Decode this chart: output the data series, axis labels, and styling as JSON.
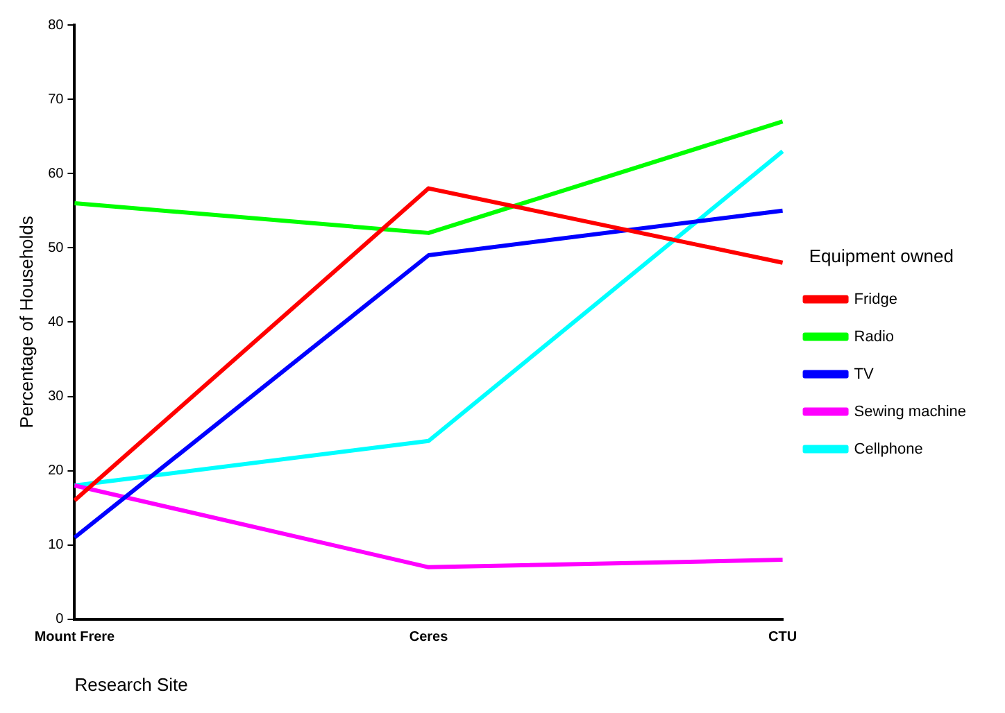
{
  "chart_data": {
    "type": "line",
    "xlabel": "Research Site",
    "ylabel": "Percentage of Households",
    "legend_title": "Equipment owned",
    "categories": [
      "Mount Frere",
      "Ceres",
      "CTU"
    ],
    "ylim": [
      0,
      80
    ],
    "yticks": [
      0,
      10,
      20,
      30,
      40,
      50,
      60,
      70,
      80
    ],
    "grid": false,
    "legend": "right",
    "marker": "none",
    "line_style": "solid",
    "series": [
      {
        "name": "Fridge",
        "color": "#ff0000",
        "values": [
          16,
          58,
          48
        ]
      },
      {
        "name": "Radio",
        "color": "#00ff00",
        "values": [
          56,
          52,
          67
        ]
      },
      {
        "name": "TV",
        "color": "#0000ff",
        "values": [
          11,
          49,
          55
        ]
      },
      {
        "name": "Sewing machine",
        "color": "#ff00ff",
        "values": [
          18,
          7,
          8
        ]
      },
      {
        "name": "Cellphone",
        "color": "#00ffff",
        "values": [
          18,
          24,
          63
        ]
      }
    ]
  }
}
